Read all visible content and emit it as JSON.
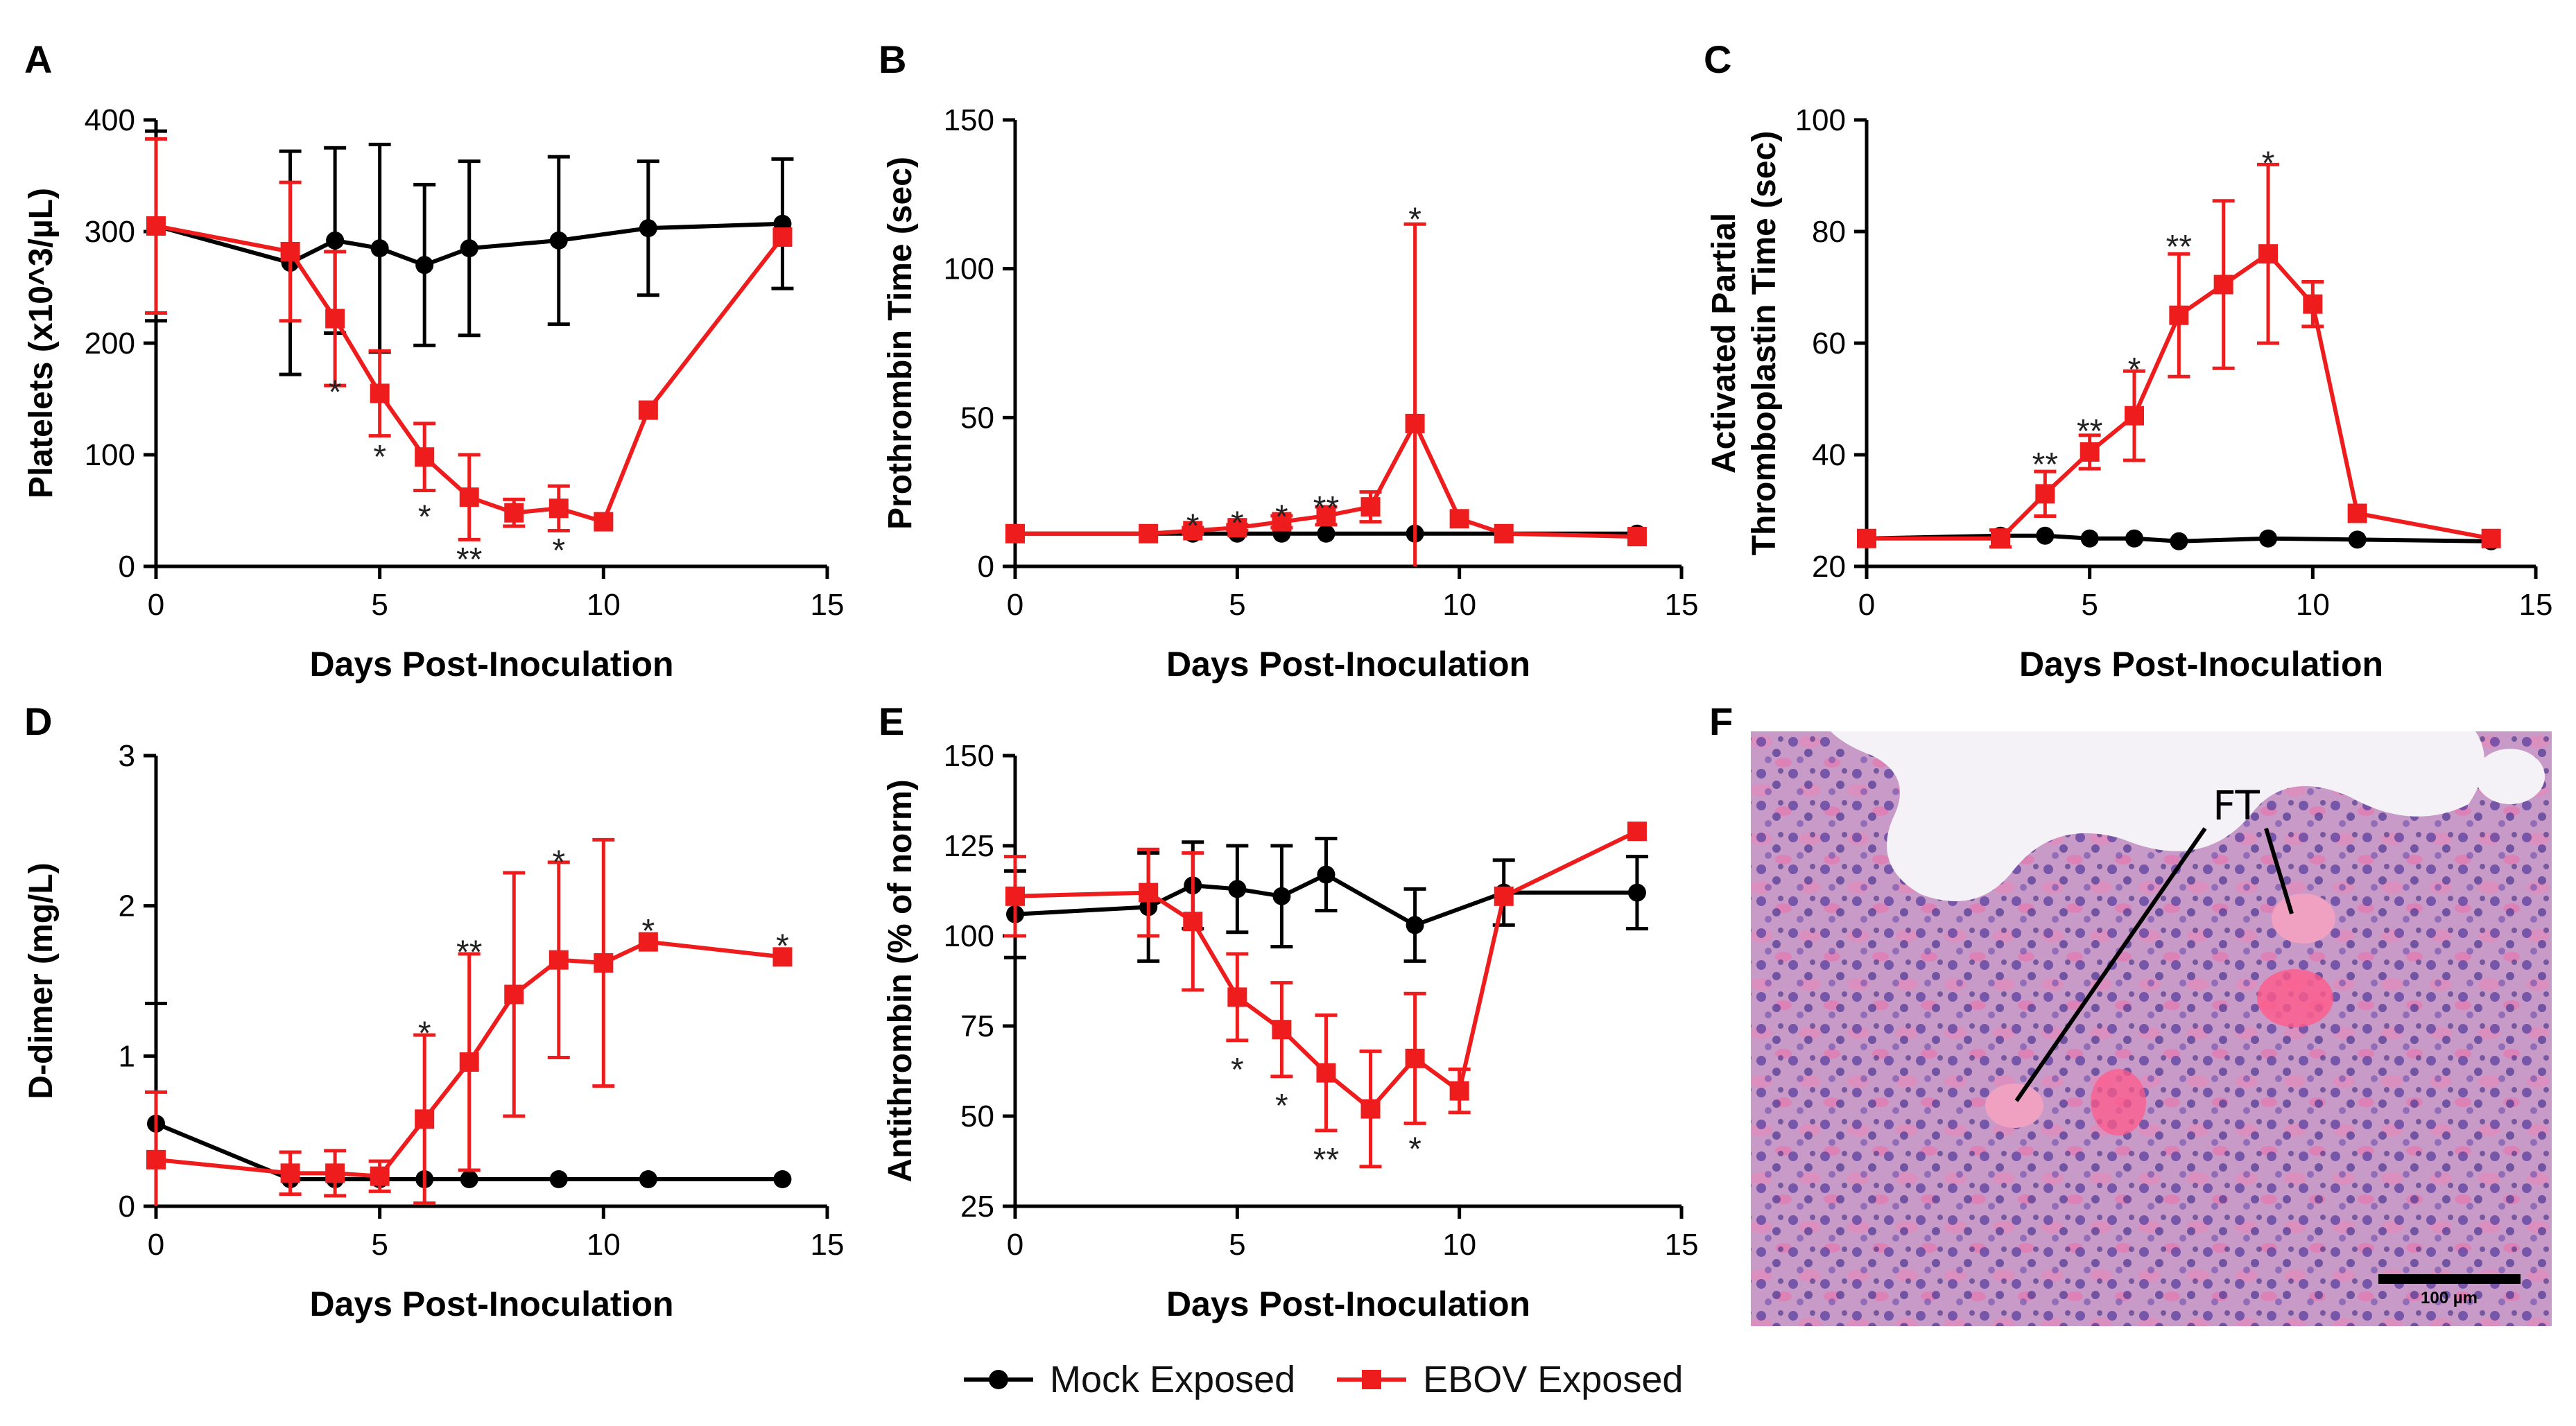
{
  "colors": {
    "mock": "#000000",
    "ebov": "#ee1c1c",
    "axis": "#000000"
  },
  "legend": {
    "mock_label": "Mock Exposed",
    "ebov_label": "EBOV Exposed"
  },
  "chart_data": [
    {
      "panel": "A",
      "type": "line",
      "xlabel": "Days Post-Inoculation",
      "ylabel": "Platelets (x10^3/µL)",
      "xlim": [
        0,
        15
      ],
      "ylim": [
        0,
        400
      ],
      "xticks": [
        0,
        5,
        10,
        15
      ],
      "yticks": [
        0,
        100,
        200,
        300,
        400
      ],
      "series": [
        {
          "name": "Mock Exposed",
          "x": [
            0,
            3,
            4,
            5,
            6,
            7,
            9,
            11,
            14
          ],
          "y": [
            305,
            272,
            292,
            285,
            270,
            285,
            292,
            303,
            307
          ],
          "err": [
            85,
            100,
            83,
            93,
            72,
            78,
            75,
            60,
            58
          ]
        },
        {
          "name": "EBOV Exposed",
          "x": [
            0,
            3,
            4,
            5,
            6,
            7,
            8,
            9,
            10,
            11,
            14
          ],
          "y": [
            305,
            282,
            222,
            155,
            98,
            62,
            48,
            52,
            40,
            140,
            295
          ],
          "err": [
            78,
            62,
            60,
            38,
            30,
            38,
            12,
            20,
            0,
            0,
            0
          ]
        }
      ],
      "annotations": [
        {
          "x": 4,
          "y": 160,
          "text": "*"
        },
        {
          "x": 5,
          "y": 102,
          "text": "*"
        },
        {
          "x": 6,
          "y": 48,
          "text": "*"
        },
        {
          "x": 7,
          "y": 10,
          "text": "**"
        },
        {
          "x": 9,
          "y": 18,
          "text": "*"
        }
      ]
    },
    {
      "panel": "B",
      "type": "line",
      "xlabel": "Days Post-Inoculation",
      "ylabel": "Prothrombin Time  (sec)",
      "xlim": [
        0,
        15
      ],
      "ylim": [
        0,
        150
      ],
      "xticks": [
        0,
        5,
        10,
        15
      ],
      "yticks": [
        0,
        50,
        100,
        150
      ],
      "series": [
        {
          "name": "Mock Exposed",
          "x": [
            0,
            3,
            4,
            5,
            6,
            7,
            9,
            11,
            14
          ],
          "y": [
            11,
            11,
            11,
            11,
            11,
            11,
            11,
            11,
            11
          ],
          "err": [
            0,
            0,
            0,
            0,
            0,
            0,
            0,
            0,
            0
          ]
        },
        {
          "name": "EBOV Exposed",
          "x": [
            0,
            3,
            4,
            5,
            6,
            7,
            8,
            9,
            10,
            11,
            14
          ],
          "y": [
            11,
            11,
            12,
            13,
            15,
            17,
            20,
            48,
            16,
            11,
            10
          ],
          "err": [
            0,
            0,
            1,
            1,
            2,
            3,
            5,
            67,
            0,
            0,
            0
          ]
        }
      ],
      "annotations": [
        {
          "x": 4,
          "y": 15,
          "text": "*"
        },
        {
          "x": 5,
          "y": 16,
          "text": "*"
        },
        {
          "x": 6,
          "y": 18,
          "text": "*"
        },
        {
          "x": 7,
          "y": 21,
          "text": "**"
        },
        {
          "x": 9,
          "y": 118,
          "text": "*"
        }
      ]
    },
    {
      "panel": "C",
      "type": "line",
      "xlabel": "Days Post-Inoculation",
      "ylabel": "Activated Partial|Thromboplastin Time  (sec)",
      "xlim": [
        0,
        15
      ],
      "ylim": [
        20,
        100
      ],
      "xticks": [
        0,
        5,
        10,
        15
      ],
      "yticks": [
        20,
        40,
        60,
        80,
        100
      ],
      "series": [
        {
          "name": "Mock Exposed",
          "x": [
            0,
            3,
            4,
            5,
            6,
            7,
            9,
            11,
            14
          ],
          "y": [
            25,
            25.5,
            25.5,
            25,
            25,
            24.5,
            25,
            24.8,
            24.5
          ],
          "err": [
            0,
            0,
            0,
            0,
            0,
            0,
            0,
            0,
            0
          ]
        },
        {
          "name": "EBOV Exposed",
          "x": [
            0,
            3,
            4,
            5,
            6,
            7,
            8,
            9,
            10,
            11,
            14
          ],
          "y": [
            25,
            25,
            33,
            40.5,
            47,
            65,
            70.5,
            76,
            67,
            29.5,
            25
          ],
          "err": [
            0,
            1.5,
            4,
            3,
            8,
            11,
            15,
            16,
            4,
            0,
            0
          ]
        }
      ],
      "annotations": [
        {
          "x": 4,
          "y": 39,
          "text": "**"
        },
        {
          "x": 5,
          "y": 45,
          "text": "**"
        },
        {
          "x": 6,
          "y": 56,
          "text": "*"
        },
        {
          "x": 7,
          "y": 78,
          "text": "**"
        },
        {
          "x": 9,
          "y": 93,
          "text": "*"
        }
      ]
    },
    {
      "panel": "D",
      "type": "line",
      "xlabel": "Days Post-Inoculation",
      "ylabel": "D-dimer (mg/L)",
      "xlim": [
        0,
        15
      ],
      "ylim": [
        0,
        3
      ],
      "xticks": [
        0,
        5,
        10,
        15
      ],
      "yticks": [
        0,
        1,
        2,
        3
      ],
      "series": [
        {
          "name": "Mock Exposed",
          "x": [
            0,
            3,
            4,
            5,
            6,
            7,
            9,
            11,
            14
          ],
          "y": [
            0.55,
            0.18,
            0.18,
            0.18,
            0.18,
            0.18,
            0.18,
            0.18,
            0.18
          ],
          "err": [
            0.8,
            0,
            0,
            0,
            0,
            0,
            0,
            0,
            0
          ]
        },
        {
          "name": "EBOV Exposed",
          "x": [
            0,
            3,
            4,
            5,
            6,
            7,
            8,
            9,
            10,
            11,
            14
          ],
          "y": [
            0.31,
            0.22,
            0.22,
            0.2,
            0.58,
            0.96,
            1.41,
            1.64,
            1.62,
            1.76,
            1.66
          ],
          "err": [
            0.45,
            0.14,
            0.15,
            0.1,
            0.56,
            0.72,
            0.81,
            0.65,
            0.82,
            0,
            0
          ]
        }
      ],
      "annotations": [
        {
          "x": 6,
          "y": 1.18,
          "text": "*"
        },
        {
          "x": 7,
          "y": 1.72,
          "text": "**"
        },
        {
          "x": 9,
          "y": 2.32,
          "text": "*"
        },
        {
          "x": 11,
          "y": 1.86,
          "text": "*"
        },
        {
          "x": 14,
          "y": 1.76,
          "text": "*"
        }
      ]
    },
    {
      "panel": "E",
      "type": "line",
      "xlabel": "Days Post-Inoculation",
      "ylabel": "Antithrombin  (% of norm)",
      "xlim": [
        0,
        15
      ],
      "ylim": [
        25,
        150
      ],
      "xticks": [
        0,
        5,
        10,
        15
      ],
      "yticks": [
        25,
        50,
        75,
        100,
        125,
        150
      ],
      "series": [
        {
          "name": "Mock Exposed",
          "x": [
            0,
            3,
            4,
            5,
            6,
            7,
            9,
            11,
            14
          ],
          "y": [
            106,
            108,
            114,
            113,
            111,
            117,
            103,
            112,
            112
          ],
          "err": [
            12,
            15,
            12,
            12,
            14,
            10,
            10,
            9,
            10
          ]
        },
        {
          "name": "EBOV Exposed",
          "x": [
            0,
            3,
            4,
            5,
            6,
            7,
            8,
            9,
            10,
            11,
            14
          ],
          "y": [
            111,
            112,
            104,
            83,
            74,
            62,
            52,
            66,
            57,
            111,
            129
          ],
          "err": [
            11,
            12,
            19,
            12,
            13,
            16,
            16,
            18,
            6,
            0,
            0
          ]
        }
      ],
      "annotations": [
        {
          "x": 5,
          "y": 64,
          "text": "*"
        },
        {
          "x": 6,
          "y": 54,
          "text": "*"
        },
        {
          "x": 7,
          "y": 39,
          "text": "**"
        },
        {
          "x": 9,
          "y": 42,
          "text": "*"
        }
      ]
    }
  ],
  "panel_f": {
    "letter": "F",
    "label": "FT",
    "scale_bar_label": "100 µm"
  }
}
